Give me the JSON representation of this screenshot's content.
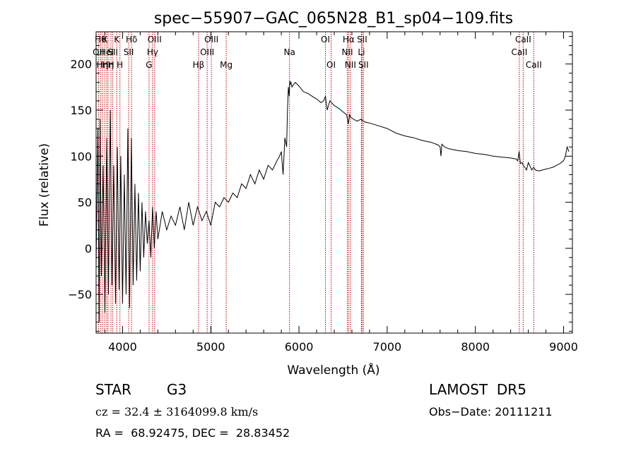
{
  "chart_data": {
    "type": "line",
    "title": "spec−55907−GAC_065N28_B1_sp04−109.fits",
    "xlabel": "Wavelength (Å)",
    "ylabel": "Flux (relative)",
    "xlim": [
      3700,
      9100
    ],
    "ylim": [
      -92,
      235
    ],
    "x_ticks": [
      4000,
      5000,
      6000,
      7000,
      8000,
      9000
    ],
    "y_ticks": [
      -50,
      0,
      50,
      100,
      150,
      200
    ],
    "grid": false,
    "legend": "none",
    "colors": {
      "spectrum": "#000000",
      "line_markers": "#cc0000"
    },
    "lines": [
      {
        "wave": 3727,
        "label": "OII",
        "row": 1
      },
      {
        "wave": 3750,
        "label": "Hθ",
        "row": 0
      },
      {
        "wave": 3771,
        "label": "Hη",
        "row": 2
      },
      {
        "wave": 3798,
        "label": "K",
        "row": 0
      },
      {
        "wave": 3820,
        "label": "HeI",
        "row": 1
      },
      {
        "wave": 3835,
        "label": "Hη",
        "row": 2
      },
      {
        "wave": 3869,
        "label": "H",
        "row": 2
      },
      {
        "wave": 3889,
        "label": "SII",
        "row": 1
      },
      {
        "wave": 3934,
        "label": "K",
        "row": 0
      },
      {
        "wave": 3970,
        "label": "H",
        "row": 2
      },
      {
        "wave": 4069,
        "label": "SII",
        "row": 1
      },
      {
        "wave": 4102,
        "label": "Hδ",
        "row": 0
      },
      {
        "wave": 4300,
        "label": "G",
        "row": 2
      },
      {
        "wave": 4340,
        "label": "Hγ",
        "row": 1
      },
      {
        "wave": 4363,
        "label": "OIII",
        "row": 0
      },
      {
        "wave": 4861,
        "label": "Hβ",
        "row": 2
      },
      {
        "wave": 4959,
        "label": "OIII",
        "row": 1
      },
      {
        "wave": 5007,
        "label": "OIII",
        "row": 0
      },
      {
        "wave": 5175,
        "label": "Mg",
        "row": 2
      },
      {
        "wave": 5893,
        "label": "Na",
        "row": 1
      },
      {
        "wave": 6300,
        "label": "OI",
        "row": 0
      },
      {
        "wave": 6364,
        "label": "OI",
        "row": 2
      },
      {
        "wave": 6548,
        "label": "NII",
        "row": 1
      },
      {
        "wave": 6563,
        "label": "Hα",
        "row": 0
      },
      {
        "wave": 6583,
        "label": "NII",
        "row": 2
      },
      {
        "wave": 6708,
        "label": "Li",
        "row": 1
      },
      {
        "wave": 6716,
        "label": "SII",
        "row": 0
      },
      {
        "wave": 6731,
        "label": "SII",
        "row": 2
      },
      {
        "wave": 8498,
        "label": "CaII",
        "row": 1
      },
      {
        "wave": 8542,
        "label": "CaII",
        "row": 0
      },
      {
        "wave": 8662,
        "label": "CaII",
        "row": 2
      }
    ],
    "series": [
      {
        "x": [
          3700,
          3720,
          3735,
          3745,
          3760,
          3780,
          3800,
          3820,
          3840,
          3860,
          3880,
          3900,
          3920,
          3940,
          3960,
          3980,
          4000,
          4020,
          4040,
          4060,
          4080,
          4100,
          4120,
          4140,
          4160,
          4180,
          4200,
          4220,
          4240,
          4260,
          4280,
          4300,
          4320,
          4340,
          4360,
          4380,
          4400,
          4450,
          4500,
          4550,
          4600,
          4650,
          4700,
          4750,
          4800,
          4850,
          4900,
          4950,
          5000,
          5050,
          5100,
          5150,
          5200,
          5250,
          5300,
          5350,
          5400,
          5450,
          5500,
          5550,
          5600,
          5650,
          5700,
          5750,
          5780,
          5800,
          5820,
          5840,
          5860,
          5870,
          5880,
          5890,
          5895,
          5900,
          5910,
          5920,
          5940,
          5960,
          6000,
          6050,
          6100,
          6150,
          6200,
          6250,
          6280,
          6300,
          6320,
          6350,
          6400,
          6450,
          6500,
          6540,
          6560,
          6575,
          6590,
          6620,
          6660,
          6700,
          6750,
          6800,
          6900,
          7000,
          7100,
          7200,
          7300,
          7400,
          7500,
          7580,
          7600,
          7610,
          7620,
          7650,
          7700,
          7800,
          7900,
          8000,
          8100,
          8200,
          8300,
          8400,
          8460,
          8480,
          8496,
          8510,
          8530,
          8542,
          8560,
          8580,
          8600,
          8640,
          8662,
          8680,
          8720,
          8760,
          8800,
          8840,
          8880,
          8920,
          8960,
          9000,
          9020,
          9040,
          9060
        ],
        "y": [
          -20,
          130,
          -80,
          140,
          -30,
          90,
          -70,
          120,
          -50,
          150,
          -40,
          90,
          -60,
          110,
          -45,
          100,
          -60,
          80,
          -50,
          130,
          -65,
          120,
          -40,
          70,
          -35,
          60,
          -25,
          50,
          -10,
          40,
          5,
          30,
          -10,
          45,
          0,
          40,
          10,
          40,
          20,
          35,
          25,
          45,
          20,
          50,
          25,
          45,
          30,
          40,
          25,
          50,
          45,
          55,
          50,
          60,
          55,
          70,
          65,
          80,
          70,
          85,
          75,
          90,
          85,
          95,
          100,
          105,
          80,
          120,
          110,
          150,
          175,
          165,
          182,
          178,
          180,
          175,
          178,
          180,
          176,
          170,
          168,
          165,
          162,
          158,
          160,
          165,
          150,
          160,
          155,
          152,
          148,
          145,
          135,
          145,
          142,
          140,
          138,
          140,
          137,
          136,
          133,
          130,
          125,
          122,
          120,
          117,
          115,
          112,
          110,
          100,
          113,
          110,
          108,
          106,
          105,
          103,
          102,
          100,
          99,
          98,
          97,
          95,
          105,
          92,
          93,
          90,
          88,
          85,
          93,
          85,
          88,
          85,
          84,
          85,
          86,
          87,
          88,
          90,
          92,
          95,
          100,
          110,
          105
        ]
      }
    ]
  },
  "info": {
    "object_class": "STAR",
    "subclass": "G3",
    "survey": "LAMOST  DR5",
    "cz": "cz = 32.4 ± 3164099.8 km/s",
    "obs_date": "Obs−Date: 20111211",
    "coords": "RA =  68.92475, DEC =  28.83452"
  }
}
